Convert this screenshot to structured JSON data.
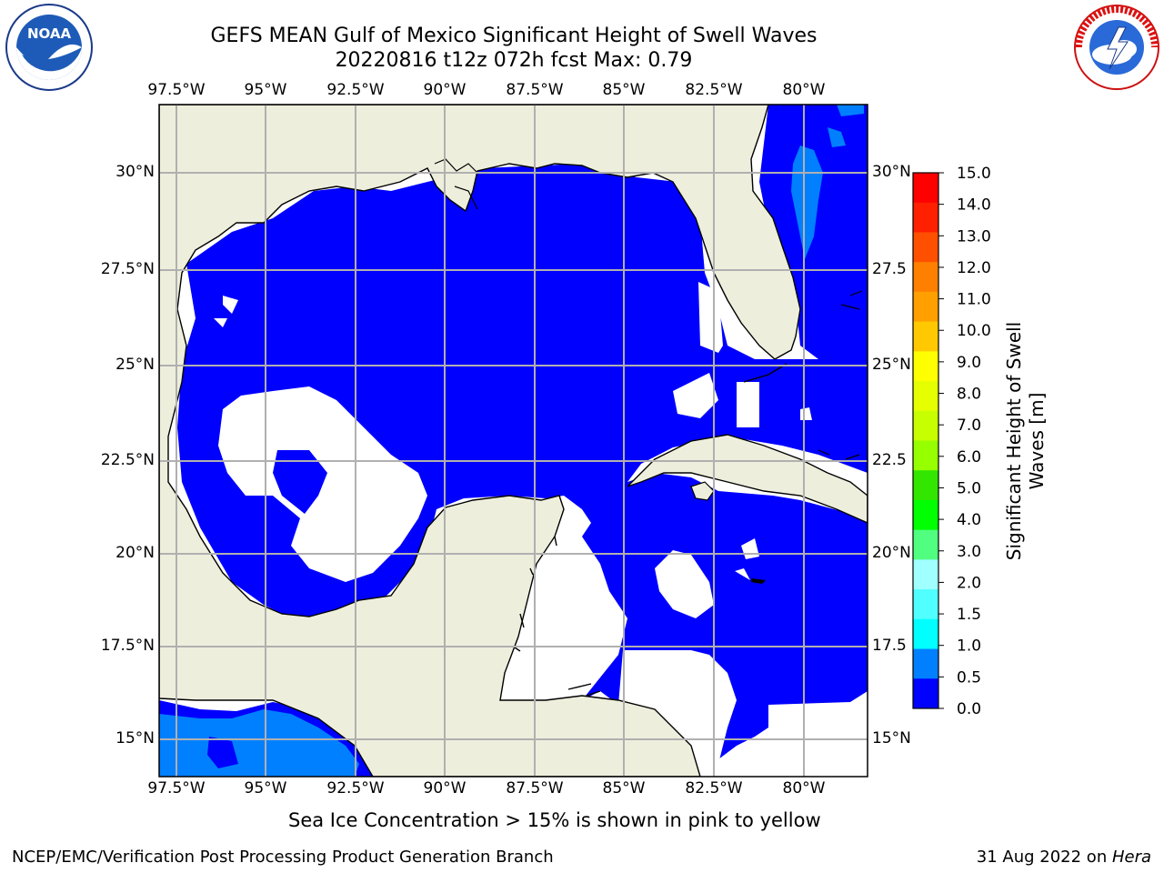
{
  "title_line1": "GEFS MEAN Gulf of Mexico Significant Height of Swell Waves",
  "title_line2": "20220816 t12z 072h fcst   Max: 0.79",
  "lon_ticks": [
    "97.5°W",
    "95°W",
    "92.5°W",
    "90°W",
    "87.5°W",
    "85°W",
    "82.5°W",
    "80°W"
  ],
  "lat_ticks_left": [
    "30°N",
    "27.5°N",
    "25°N",
    "22.5°N",
    "20°N",
    "17.5°N",
    "15°N"
  ],
  "lat_ticks_right": [
    "30°N",
    "27.5",
    "25°N",
    "22.5",
    "20°N",
    "17.5",
    "15°N"
  ],
  "colorbar": {
    "label": "Significant Height of Swell Waves [m]",
    "label_line1": "Significant Height of Swell",
    "label_line2": "Waves [m]",
    "levels": [
      "15.0",
      "14.0",
      "13.0",
      "12.0",
      "11.0",
      "10.0",
      "9.0",
      "8.0",
      "7.0",
      "6.0",
      "5.0",
      "4.0",
      "3.0",
      "2.0",
      "1.5",
      "1.0",
      "0.5",
      "0.0"
    ],
    "colors": [
      "#ff0000",
      "#ff2000",
      "#ff5000",
      "#ff8000",
      "#ffa000",
      "#ffc800",
      "#ffff00",
      "#e6ff00",
      "#c8ff00",
      "#96ff00",
      "#32e600",
      "#00ff00",
      "#50ff80",
      "#a0ffff",
      "#50ffff",
      "#00ffff",
      "#0080ff",
      "#0000ff"
    ]
  },
  "ice_note": "Sea Ice Concentration > 15% is shown in pink to yellow",
  "footer_left": "NCEP/EMC/Verification Post Processing Product Generation Branch",
  "footer_right_date": "31 Aug 2022 on ",
  "footer_right_host": "Hera",
  "colors": {
    "land": "#eeeedd",
    "water_low": "#0000ff",
    "water_mid": "#0080ff",
    "grid": "#b0b0b0"
  }
}
